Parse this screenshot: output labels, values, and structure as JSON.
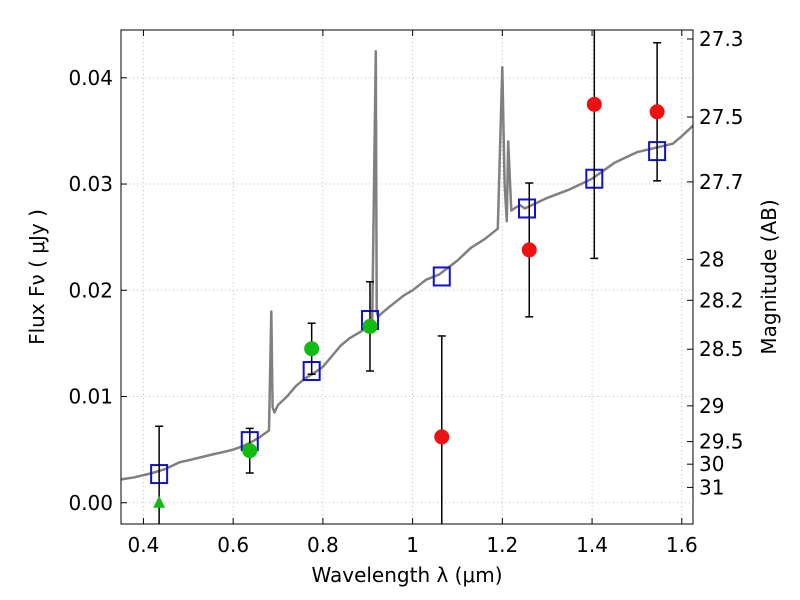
{
  "chart_data": {
    "type": "scatter",
    "xlabel": "Wavelength  λ (μm)",
    "ylabel": "Flux  Fν  ( μJy )",
    "y2label": "Magnitude (AB)",
    "xlim": [
      0.35,
      1.625
    ],
    "ylim": [
      -0.002,
      0.0445
    ],
    "grid": true,
    "x_ticks": [
      {
        "value": 0.4,
        "label": "0.4"
      },
      {
        "value": 0.6,
        "label": "0.6"
      },
      {
        "value": 0.8,
        "label": "0.8"
      },
      {
        "value": 1.0,
        "label": "1"
      },
      {
        "value": 1.2,
        "label": "1.2"
      },
      {
        "value": 1.4,
        "label": "1.4"
      },
      {
        "value": 1.6,
        "label": "1.6"
      }
    ],
    "y_ticks": [
      {
        "value": 0.0,
        "label": "0.00"
      },
      {
        "value": 0.01,
        "label": "0.01"
      },
      {
        "value": 0.02,
        "label": "0.02"
      },
      {
        "value": 0.03,
        "label": "0.03"
      },
      {
        "value": 0.04,
        "label": "0.04"
      }
    ],
    "y2_ticks": [
      {
        "value": 27.3,
        "label": "27.3"
      },
      {
        "value": 27.5,
        "label": "27.5"
      },
      {
        "value": 27.7,
        "label": "27.7"
      },
      {
        "value": 28,
        "label": "28"
      },
      {
        "value": 28.2,
        "label": "28.2"
      },
      {
        "value": 28.5,
        "label": "28.5"
      },
      {
        "value": 29,
        "label": "29"
      },
      {
        "value": 29.5,
        "label": "29.5"
      },
      {
        "value": 30,
        "label": "30"
      },
      {
        "value": 31,
        "label": "31"
      }
    ],
    "colors": {
      "model": "#808080",
      "red": "#ee1111",
      "green": "#11bb11",
      "square": "#1111cc",
      "errorbar": "#000000",
      "grid": "#bbbbbb"
    },
    "series": [
      {
        "style": "line",
        "x": [
          0.35,
          0.38,
          0.42,
          0.45,
          0.48,
          0.5,
          0.52,
          0.55,
          0.58,
          0.6,
          0.62,
          0.64,
          0.66,
          0.68,
          0.685,
          0.688,
          0.692,
          0.7,
          0.72,
          0.74,
          0.76,
          0.78,
          0.8,
          0.82,
          0.84,
          0.86,
          0.88,
          0.9,
          0.91,
          0.918,
          0.92,
          0.923,
          0.93,
          0.95,
          0.98,
          1.0,
          1.03,
          1.06,
          1.1,
          1.13,
          1.16,
          1.19,
          1.2,
          1.205,
          1.21,
          1.213,
          1.22,
          1.23,
          1.24,
          1.25,
          1.28,
          1.3,
          1.35,
          1.4,
          1.45,
          1.5,
          1.55,
          1.58,
          1.6,
          1.625
        ],
        "values": [
          0.0022,
          0.0024,
          0.0028,
          0.0032,
          0.0038,
          0.004,
          0.0042,
          0.0045,
          0.0048,
          0.005,
          0.0053,
          0.0057,
          0.0062,
          0.0068,
          0.018,
          0.009,
          0.0085,
          0.0092,
          0.01,
          0.011,
          0.0117,
          0.0122,
          0.0128,
          0.0138,
          0.0148,
          0.0155,
          0.016,
          0.0165,
          0.017,
          0.0425,
          0.018,
          0.0175,
          0.0178,
          0.0185,
          0.0195,
          0.02,
          0.021,
          0.0215,
          0.0228,
          0.024,
          0.0248,
          0.0258,
          0.041,
          0.03,
          0.0265,
          0.034,
          0.0275,
          0.0278,
          0.028,
          0.0277,
          0.0283,
          0.0287,
          0.0295,
          0.0305,
          0.032,
          0.033,
          0.0335,
          0.0338,
          0.0345,
          0.0355
        ]
      },
      {
        "style": "square",
        "x": [
          0.435,
          0.637,
          0.775,
          0.905,
          1.065,
          1.255,
          1.405,
          1.545
        ],
        "values": [
          0.0027,
          0.0058,
          0.0124,
          0.0172,
          0.0213,
          0.0277,
          0.0305,
          0.0331
        ]
      },
      {
        "style": "circle-green",
        "x": [
          0.637,
          0.775,
          0.905
        ],
        "values": [
          0.0049,
          0.0145,
          0.0166
        ],
        "errors": [
          0.0021,
          0.0024,
          0.0042
        ]
      },
      {
        "style": "circle-red",
        "x": [
          1.065,
          1.26,
          1.405,
          1.545
        ],
        "values": [
          0.0062,
          0.0238,
          0.0375,
          0.0368
        ],
        "errors": [
          0.0095,
          0.0063,
          0.0145,
          0.0065
        ]
      },
      {
        "style": "triangle-green",
        "x": [
          0.435
        ],
        "values": [
          0.0
        ],
        "errors": [
          0.0072
        ]
      }
    ]
  }
}
